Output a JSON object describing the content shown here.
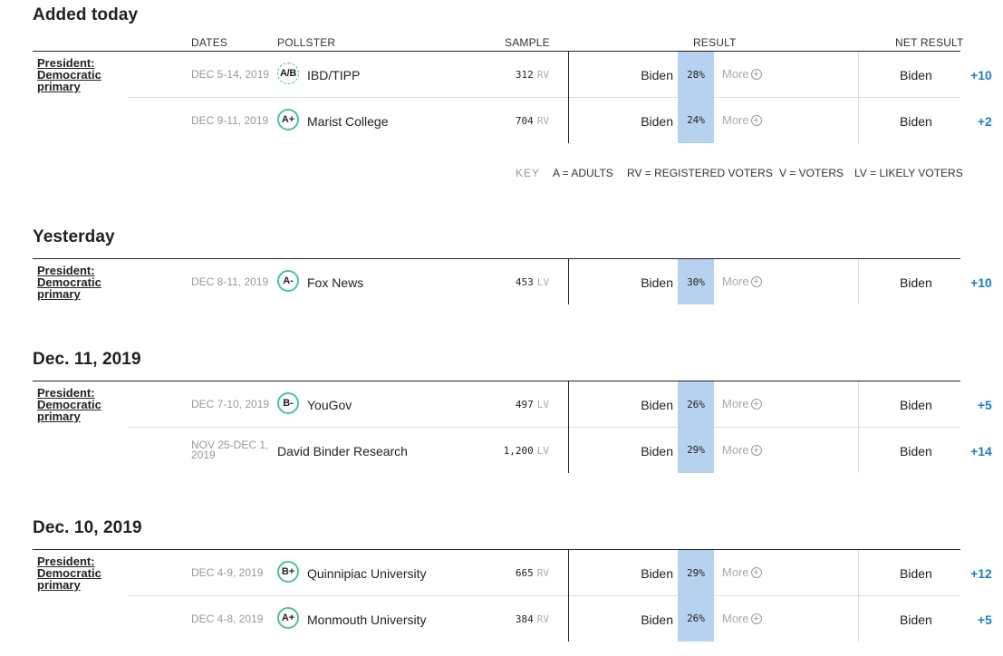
{
  "columns": {
    "dates": "DATES",
    "pollster": "POLLSTER",
    "sample": "SAMPLE",
    "result": "RESULT",
    "net_result": "NET RESULT"
  },
  "key": {
    "label": "KEY",
    "a": "A = ADULTS",
    "rv": "RV = REGISTERED VOTERS",
    "v": "V = VOTERS",
    "lv": "LV = LIKELY VOTERS"
  },
  "more_label": "More",
  "sections": [
    {
      "title": "Added today",
      "race": "President: Democratic primary",
      "rows": [
        {
          "dates": "DEC 5-14, 2019",
          "grade": "A/B",
          "pollster": "IBD/TIPP",
          "sample": "312",
          "sample_type": "RV",
          "candidate": "Biden",
          "pct": "28%",
          "net_candidate": "Biden",
          "net_margin": "+10"
        },
        {
          "dates": "DEC 9-11, 2019",
          "grade": "A+",
          "pollster": "Marist College",
          "sample": "704",
          "sample_type": "RV",
          "candidate": "Biden",
          "pct": "24%",
          "net_candidate": "Biden",
          "net_margin": "+2"
        }
      ]
    },
    {
      "title": "Yesterday",
      "race": "President: Democratic primary",
      "rows": [
        {
          "dates": "DEC 8-11, 2019",
          "grade": "A-",
          "pollster": "Fox News",
          "sample": "453",
          "sample_type": "LV",
          "candidate": "Biden",
          "pct": "30%",
          "net_candidate": "Biden",
          "net_margin": "+10"
        }
      ]
    },
    {
      "title": "Dec. 11, 2019",
      "race": "President: Democratic primary",
      "rows": [
        {
          "dates": "DEC 7-10, 2019",
          "grade": "B-",
          "pollster": "YouGov",
          "sample": "497",
          "sample_type": "LV",
          "candidate": "Biden",
          "pct": "26%",
          "net_candidate": "Biden",
          "net_margin": "+5"
        },
        {
          "dates": "NOV 25-DEC 1, 2019",
          "grade": "",
          "pollster": "David Binder Research",
          "sample": "1,200",
          "sample_type": "LV",
          "candidate": "Biden",
          "pct": "29%",
          "net_candidate": "Biden",
          "net_margin": "+14"
        }
      ]
    },
    {
      "title": "Dec. 10, 2019",
      "race": "President: Democratic primary",
      "rows": [
        {
          "dates": "DEC 4-9, 2019",
          "grade": "B+",
          "pollster": "Quinnipiac University",
          "sample": "665",
          "sample_type": "RV",
          "candidate": "Biden",
          "pct": "29%",
          "net_candidate": "Biden",
          "net_margin": "+12"
        },
        {
          "dates": "DEC 4-8, 2019",
          "grade": "A+",
          "pollster": "Monmouth University",
          "sample": "384",
          "sample_type": "RV",
          "candidate": "Biden",
          "pct": "26%",
          "net_candidate": "Biden",
          "net_margin": "+5"
        }
      ]
    }
  ]
}
